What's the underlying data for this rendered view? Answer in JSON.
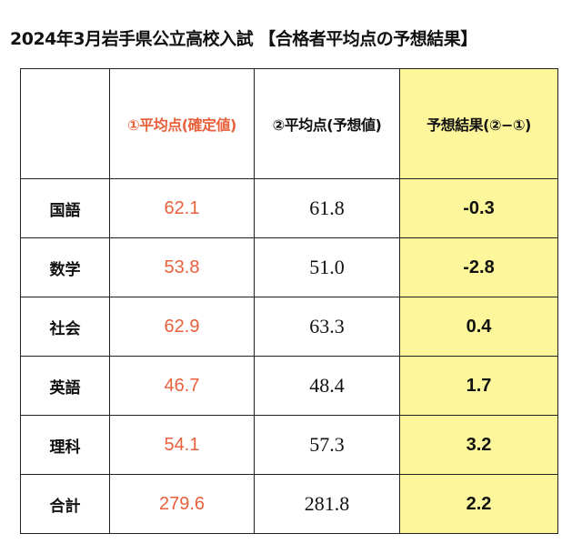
{
  "title": "2024年3月岩手県公立高校入試 【合格者平均点の予想結果】",
  "headers": {
    "subject": "",
    "confirmed": "①平均点(確定値)",
    "predicted": "②平均点(予想値)",
    "result": "予想結果(②−①)"
  },
  "rows": [
    {
      "subject": "国語",
      "confirmed": "62.1",
      "predicted": "61.8",
      "result": "-0.3"
    },
    {
      "subject": "数学",
      "confirmed": "53.8",
      "predicted": "51.0",
      "result": "-2.8"
    },
    {
      "subject": "社会",
      "confirmed": "62.9",
      "predicted": "63.3",
      "result": "0.4"
    },
    {
      "subject": "英語",
      "confirmed": "46.7",
      "predicted": "48.4",
      "result": "1.7"
    },
    {
      "subject": "理科",
      "confirmed": "54.1",
      "predicted": "57.3",
      "result": "3.2"
    },
    {
      "subject": "合計",
      "confirmed": "279.6",
      "predicted": "281.8",
      "result": "2.2"
    }
  ],
  "colors": {
    "confirmed_text": "#e8603c",
    "result_highlight": "#fdf69b"
  }
}
